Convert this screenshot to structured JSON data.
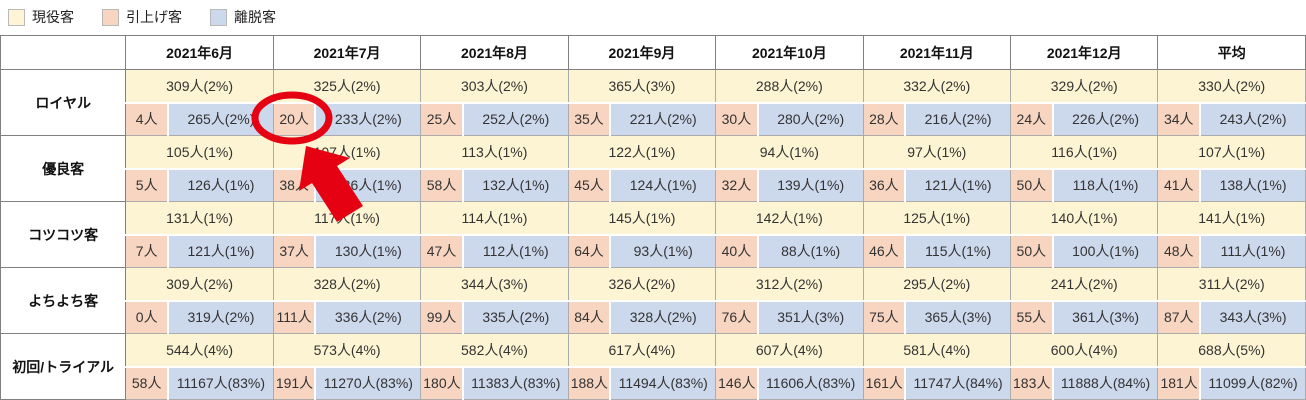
{
  "legend": {
    "items": [
      {
        "label": "現役客",
        "color": "#fdf5d5"
      },
      {
        "label": "引上げ客",
        "color": "#f8d5c0"
      },
      {
        "label": "離脱客",
        "color": "#ccd8ec"
      }
    ]
  },
  "colors": {
    "retained_bg": "#fcf4d3",
    "raised_bg": "#f8d5c0",
    "churned_bg": "#ccd8ec",
    "annotation_red": "#e50012"
  },
  "table": {
    "columns": [
      "2021年6月",
      "2021年7月",
      "2021年8月",
      "2021年9月",
      "2021年10月",
      "2021年11月",
      "2021年12月",
      "平均"
    ],
    "rows": [
      {
        "label": "ロイヤル",
        "retained": [
          "309人(2%)",
          "325人(2%)",
          "303人(2%)",
          "365人(3%)",
          "288人(2%)",
          "332人(2%)",
          "329人(2%)",
          "330人(2%)"
        ],
        "raised": [
          "4人",
          "20人",
          "25人",
          "35人",
          "30人",
          "28人",
          "24人",
          "34人"
        ],
        "churned": [
          "265人(2%)",
          "233人(2%)",
          "252人(2%)",
          "221人(2%)",
          "280人(2%)",
          "216人(2%)",
          "226人(2%)",
          "243人(2%)"
        ]
      },
      {
        "label": "優良客",
        "retained": [
          "105人(1%)",
          "107人(1%)",
          "113人(1%)",
          "122人(1%)",
          "94人(1%)",
          "97人(1%)",
          "116人(1%)",
          "107人(1%)"
        ],
        "raised": [
          "5人",
          "38人",
          "58人",
          "45人",
          "32人",
          "36人",
          "50人",
          "41人"
        ],
        "churned": [
          "126人(1%)",
          "126人(1%)",
          "132人(1%)",
          "124人(1%)",
          "139人(1%)",
          "121人(1%)",
          "118人(1%)",
          "138人(1%)"
        ]
      },
      {
        "label": "コツコツ客",
        "retained": [
          "131人(1%)",
          "117人(1%)",
          "114人(1%)",
          "145人(1%)",
          "142人(1%)",
          "125人(1%)",
          "140人(1%)",
          "141人(1%)"
        ],
        "raised": [
          "7人",
          "37人",
          "47人",
          "64人",
          "40人",
          "46人",
          "50人",
          "48人"
        ],
        "churned": [
          "121人(1%)",
          "130人(1%)",
          "112人(1%)",
          "93人(1%)",
          "88人(1%)",
          "115人(1%)",
          "100人(1%)",
          "111人(1%)"
        ]
      },
      {
        "label": "よちよち客",
        "retained": [
          "309人(2%)",
          "328人(2%)",
          "344人(3%)",
          "326人(2%)",
          "312人(2%)",
          "295人(2%)",
          "241人(2%)",
          "311人(2%)"
        ],
        "raised": [
          "0人",
          "111人",
          "99人",
          "84人",
          "76人",
          "75人",
          "55人",
          "87人"
        ],
        "churned": [
          "319人(2%)",
          "336人(2%)",
          "335人(2%)",
          "328人(2%)",
          "351人(3%)",
          "365人(3%)",
          "361人(3%)",
          "343人(3%)"
        ]
      },
      {
        "label": "初回/トライアル",
        "retained": [
          "544人(4%)",
          "573人(4%)",
          "582人(4%)",
          "617人(4%)",
          "607人(4%)",
          "581人(4%)",
          "600人(4%)",
          "688人(5%)"
        ],
        "raised": [
          "58人",
          "191人",
          "180人",
          "188人",
          "146人",
          "161人",
          "183人",
          "181人"
        ],
        "churned": [
          "11167人(83%)",
          "11270人(83%)",
          "11383人(83%)",
          "11494人(83%)",
          "11606人(83%)",
          "11747人(84%)",
          "11888人(84%)",
          "11099人(82%)"
        ]
      }
    ]
  },
  "annotation": {
    "color": "#e50012",
    "highlighted_row": "ロイヤル",
    "highlighted_column": "2021年7月",
    "highlighted_value": "20人"
  }
}
